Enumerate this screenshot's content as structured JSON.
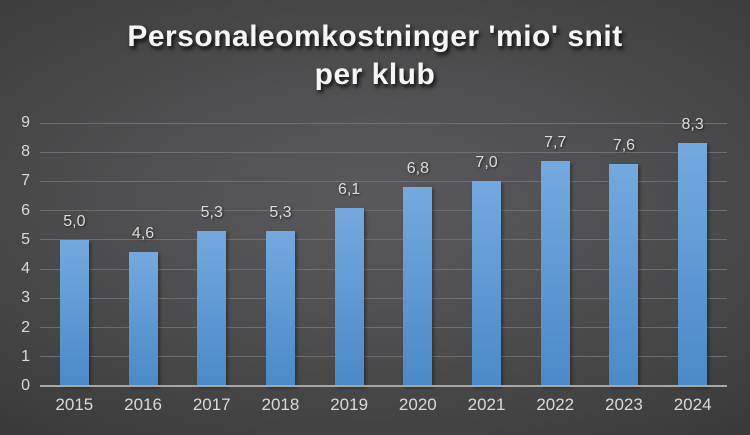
{
  "title": {
    "full": "Personaleomkostninger 'mio' snit per klub",
    "line1": "Personaleomkostninger 'mio' snit",
    "line2": "per klub"
  },
  "colors": {
    "background_center": "#59595B",
    "background_edge": "#242425",
    "bar_gradient_top": "#74A9DF",
    "bar_gradient_bottom": "#4B89C8",
    "gridline": "#6E6E70",
    "axis_line": "#A6A6A6",
    "label_text": "#D9D9D9",
    "title_text": "#F5F5F5"
  },
  "chart_data": {
    "type": "bar",
    "title": "Personaleomkostninger 'mio' snit per klub",
    "categories": [
      "2015",
      "2016",
      "2017",
      "2018",
      "2019",
      "2020",
      "2021",
      "2022",
      "2023",
      "2024"
    ],
    "values": [
      5.0,
      4.6,
      5.3,
      5.3,
      6.1,
      6.8,
      7.0,
      7.7,
      7.6,
      8.3
    ],
    "value_labels": [
      "5,0",
      "4,6",
      "5,3",
      "5,3",
      "6,1",
      "6,8",
      "7,0",
      "7,7",
      "7,6",
      "8,3"
    ],
    "xlabel": "",
    "ylabel": "",
    "ylim": [
      0,
      9
    ],
    "yticks": [
      "0",
      "1",
      "2",
      "3",
      "4",
      "5",
      "6",
      "7",
      "8",
      "9"
    ],
    "grid": true,
    "legend": false,
    "data_labels": "above bars, decimal comma"
  }
}
